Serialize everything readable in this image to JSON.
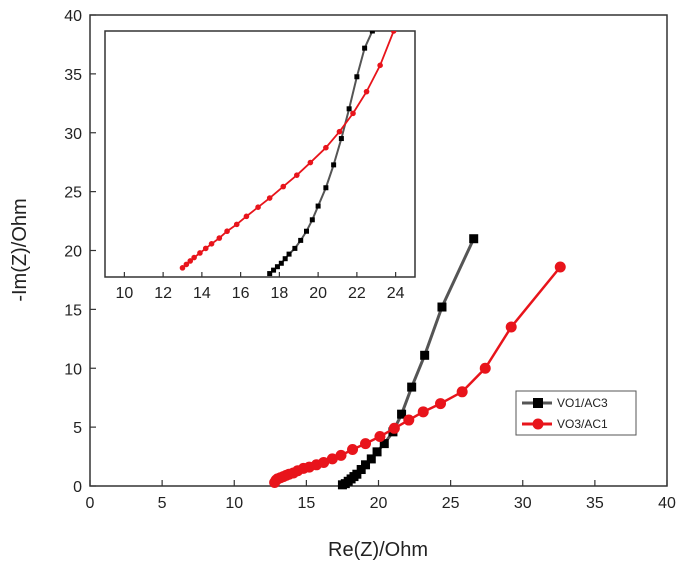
{
  "chart_data": {
    "type": "line",
    "xlabel": "Re(Z)/Ohm",
    "ylabel": "-Im(Z)/Ohm",
    "xlim": [
      0,
      40
    ],
    "ylim": [
      0,
      40
    ],
    "xticks": [
      0,
      5,
      10,
      15,
      20,
      25,
      30,
      35,
      40
    ],
    "yticks": [
      0,
      5,
      10,
      15,
      20,
      25,
      30,
      35,
      40
    ],
    "legend_position": "right",
    "series": [
      {
        "name": "VO1/AC3",
        "color": "#000000",
        "marker": "square",
        "x": [
          17.5,
          17.7,
          17.9,
          18.1,
          18.3,
          18.5,
          18.8,
          19.1,
          19.5,
          19.9,
          20.4,
          21.0,
          21.6,
          22.3,
          23.2,
          24.4,
          26.6
        ],
        "y": [
          0.1,
          0.2,
          0.4,
          0.6,
          0.8,
          1.0,
          1.4,
          1.8,
          2.3,
          2.9,
          3.6,
          4.6,
          6.1,
          8.4,
          11.1,
          15.2,
          21.0
        ]
      },
      {
        "name": "VO3/AC1",
        "color": "#e8141b",
        "marker": "circle",
        "x": [
          12.8,
          12.9,
          13.0,
          13.2,
          13.4,
          13.6,
          13.8,
          14.1,
          14.4,
          14.8,
          15.2,
          15.7,
          16.2,
          16.8,
          17.4,
          18.2,
          19.1,
          20.1,
          21.1,
          22.1,
          23.1,
          24.3,
          25.8,
          27.4,
          29.2,
          32.6
        ],
        "y": [
          0.3,
          0.5,
          0.6,
          0.7,
          0.8,
          0.9,
          1.0,
          1.1,
          1.3,
          1.5,
          1.6,
          1.8,
          2.0,
          2.3,
          2.6,
          3.1,
          3.6,
          4.2,
          4.9,
          5.6,
          6.3,
          7.0,
          8.0,
          10.0,
          13.5,
          18.6
        ]
      }
    ],
    "inset": {
      "xlim": [
        9,
        25
      ],
      "ylim": [
        17.5,
        39
      ],
      "xticks": [
        10,
        12,
        14,
        16,
        18,
        20,
        22,
        24
      ],
      "series": [
        {
          "name": "VO1/AC3",
          "color": "#000000",
          "marker": "square",
          "x": [
            17.5,
            17.7,
            17.9,
            18.1,
            18.3,
            18.5,
            18.8,
            19.1,
            19.4,
            19.7,
            20.0,
            20.4,
            20.8,
            21.2,
            21.6,
            22.0,
            22.4,
            22.8
          ],
          "y": [
            17.8,
            18.1,
            18.4,
            18.7,
            19.1,
            19.5,
            20.0,
            20.7,
            21.5,
            22.5,
            23.7,
            25.3,
            27.3,
            29.6,
            32.2,
            35.0,
            37.5,
            39.0
          ]
        },
        {
          "name": "VO3/AC1",
          "color": "#e8141b",
          "marker": "circle",
          "x": [
            13.0,
            13.2,
            13.4,
            13.6,
            13.9,
            14.2,
            14.5,
            14.9,
            15.3,
            15.8,
            16.3,
            16.9,
            17.5,
            18.2,
            18.9,
            19.6,
            20.4,
            21.1,
            21.8,
            22.5,
            23.2,
            23.9
          ],
          "y": [
            18.3,
            18.6,
            18.9,
            19.2,
            19.6,
            20.0,
            20.4,
            20.9,
            21.5,
            22.1,
            22.8,
            23.6,
            24.4,
            25.4,
            26.4,
            27.5,
            28.8,
            30.2,
            31.8,
            33.7,
            36.0,
            39.0
          ]
        }
      ]
    }
  }
}
